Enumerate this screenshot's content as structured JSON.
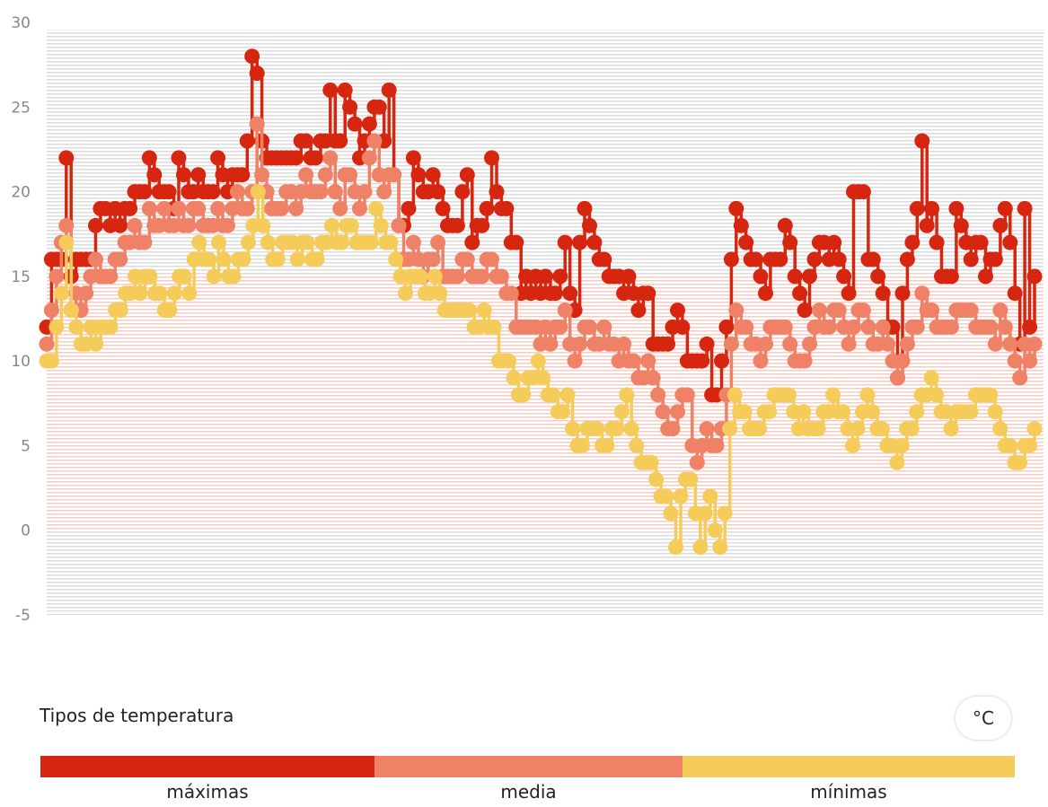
{
  "chart_data": {
    "type": "line",
    "ylim": [
      -5,
      30
    ],
    "y_ticks": [
      "30",
      "25",
      "20",
      "15",
      "10",
      "5",
      "0",
      "-5"
    ],
    "colors": {
      "max": "#d7260f",
      "media": "#ef8166",
      "min": "#f5cc5a",
      "band_max": "#f4ccc4",
      "band_cold": "#dcdcdc",
      "band_warm": "#ececec"
    },
    "series": [
      {
        "key": "max",
        "values": [
          12,
          16,
          16,
          16,
          22,
          15,
          16,
          16,
          16,
          16,
          18,
          19,
          19,
          18,
          19,
          18,
          19,
          19,
          20,
          20,
          20,
          22,
          21,
          20,
          20,
          20,
          19,
          22,
          21,
          20,
          20,
          21,
          20,
          20,
          20,
          22,
          21,
          20,
          21,
          21,
          21,
          23,
          28,
          27,
          23,
          22,
          22,
          22,
          22,
          22,
          22,
          22,
          23,
          23,
          22,
          22,
          23,
          23,
          26,
          23,
          23,
          26,
          25,
          24,
          22,
          23,
          24,
          25,
          25,
          23,
          26,
          21,
          18,
          18,
          19,
          22,
          21,
          20,
          20,
          21,
          20,
          19,
          18,
          18,
          18,
          20,
          21,
          17,
          18,
          18,
          19,
          22,
          20,
          19,
          19,
          17,
          17,
          14,
          15,
          14,
          15,
          14,
          15,
          14,
          14,
          15,
          17,
          14,
          13,
          17,
          19,
          18,
          17,
          16,
          16,
          15,
          15,
          15,
          14,
          15,
          14,
          13,
          14,
          14,
          11,
          11,
          11,
          11,
          12,
          13,
          12,
          10,
          10,
          10,
          10,
          11,
          8,
          8,
          10,
          12,
          16,
          19,
          18,
          17,
          16,
          16,
          15,
          14,
          16,
          16,
          16,
          18,
          17,
          15,
          14,
          13,
          15,
          16,
          17,
          17,
          16,
          17,
          16,
          15,
          14,
          20,
          20,
          20,
          16,
          16,
          15,
          14,
          12,
          12,
          9,
          14,
          16,
          17,
          19,
          23,
          18,
          19,
          17,
          15,
          15,
          15,
          19,
          18,
          17,
          16,
          17,
          17,
          15,
          16,
          16,
          18,
          19,
          17,
          14,
          11,
          19,
          12,
          15
        ]
      },
      {
        "key": "media",
        "values": [
          11,
          13,
          15,
          17,
          18,
          13,
          14,
          13,
          14,
          15,
          16,
          15,
          15,
          15,
          16,
          16,
          17,
          17,
          18,
          17,
          17,
          19,
          18,
          18,
          19,
          18,
          18,
          19,
          18,
          18,
          19,
          19,
          18,
          18,
          18,
          19,
          18,
          18,
          19,
          20,
          19,
          19,
          20,
          24,
          21,
          20,
          19,
          19,
          19,
          20,
          20,
          19,
          20,
          21,
          20,
          20,
          20,
          21,
          22,
          20,
          19,
          21,
          21,
          20,
          19,
          20,
          22,
          23,
          21,
          20,
          21,
          21,
          18,
          16,
          16,
          17,
          16,
          15,
          16,
          16,
          17,
          15,
          15,
          15,
          15,
          16,
          16,
          15,
          15,
          15,
          16,
          16,
          15,
          15,
          14,
          14,
          12,
          12,
          12,
          12,
          12,
          11,
          12,
          11,
          12,
          12,
          13,
          11,
          10,
          11,
          12,
          12,
          11,
          11,
          12,
          11,
          11,
          10,
          11,
          10,
          10,
          9,
          9,
          10,
          9,
          8,
          7,
          6,
          6,
          7,
          8,
          8,
          5,
          4,
          5,
          6,
          5,
          5,
          6,
          8,
          11,
          13,
          12,
          12,
          11,
          11,
          10,
          11,
          12,
          12,
          12,
          12,
          11,
          10,
          10,
          10,
          11,
          12,
          13,
          12,
          12,
          13,
          13,
          12,
          11,
          12,
          13,
          13,
          12,
          11,
          11,
          12,
          11,
          10,
          9,
          10,
          11,
          12,
          12,
          14,
          13,
          13,
          12,
          12,
          12,
          12,
          13,
          13,
          13,
          13,
          12,
          12,
          12,
          12,
          11,
          13,
          12,
          11,
          10,
          9,
          11,
          10,
          11
        ]
      },
      {
        "key": "min",
        "values": [
          10,
          10,
          12,
          14,
          17,
          13,
          12,
          11,
          11,
          12,
          11,
          12,
          12,
          12,
          13,
          13,
          14,
          14,
          15,
          14,
          15,
          15,
          14,
          14,
          13,
          13,
          14,
          15,
          15,
          14,
          16,
          17,
          16,
          16,
          15,
          17,
          16,
          15,
          15,
          16,
          16,
          17,
          18,
          20,
          18,
          17,
          16,
          16,
          17,
          17,
          17,
          16,
          17,
          17,
          16,
          16,
          17,
          17,
          18,
          17,
          17,
          18,
          18,
          17,
          17,
          17,
          17,
          19,
          18,
          17,
          17,
          16,
          15,
          14,
          15,
          15,
          15,
          14,
          14,
          15,
          14,
          13,
          13,
          13,
          13,
          13,
          13,
          12,
          12,
          13,
          12,
          12,
          10,
          10,
          10,
          9,
          8,
          8,
          9,
          9,
          10,
          9,
          8,
          8,
          7,
          7,
          8,
          6,
          5,
          5,
          6,
          6,
          6,
          5,
          5,
          6,
          6,
          7,
          8,
          6,
          5,
          4,
          4,
          4,
          3,
          2,
          2,
          1,
          -1,
          2,
          3,
          3,
          1,
          -1,
          1,
          2,
          0,
          -1,
          1,
          6,
          8,
          7,
          7,
          6,
          6,
          6,
          7,
          7,
          8,
          8,
          8,
          8,
          7,
          6,
          7,
          6,
          6,
          6,
          7,
          7,
          8,
          7,
          7,
          6,
          5,
          6,
          7,
          8,
          7,
          6,
          6,
          5,
          5,
          4,
          5,
          6,
          6,
          7,
          8,
          8,
          9,
          8,
          7,
          7,
          6,
          7,
          7,
          7,
          7,
          8,
          8,
          8,
          8,
          7,
          6,
          5,
          5,
          4,
          4,
          5,
          5,
          6
        ]
      }
    ]
  },
  "legend": {
    "title": "Tipos de temperatura",
    "unit_button": "°C",
    "items": [
      {
        "key": "max",
        "label": "máximas",
        "color": "#d7260f"
      },
      {
        "key": "media",
        "label": "media",
        "color": "#ef8166"
      },
      {
        "key": "min",
        "label": "mínimas",
        "color": "#f5cc5a"
      }
    ]
  }
}
